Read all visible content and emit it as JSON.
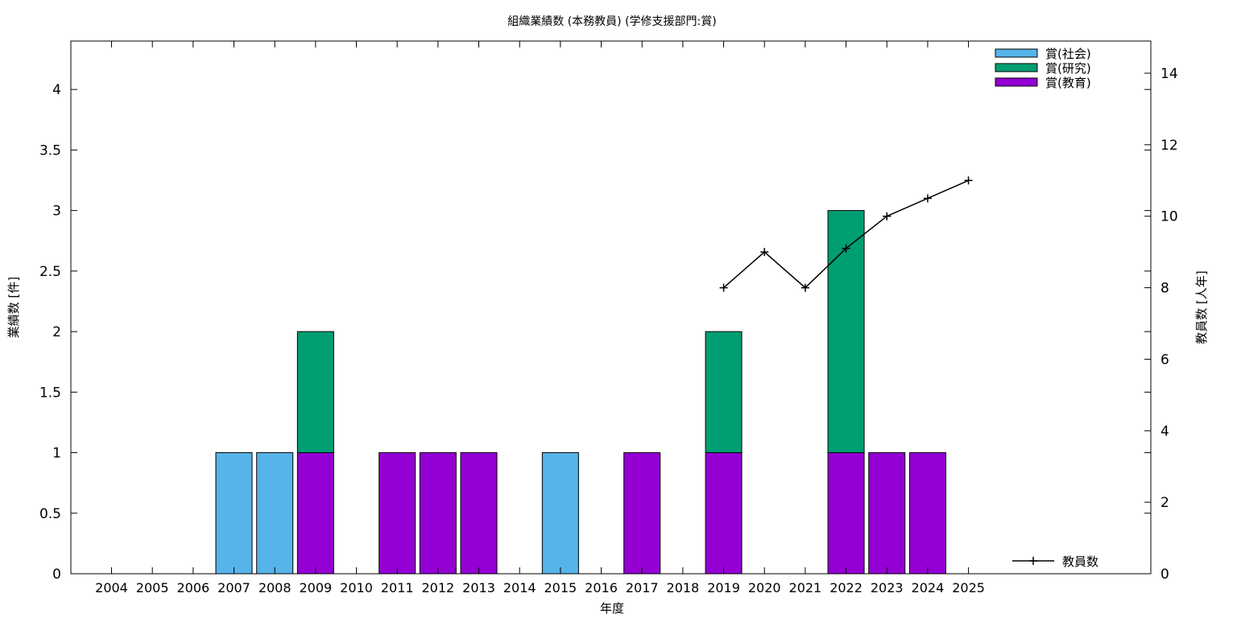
{
  "chart_data": {
    "type": "bar",
    "stacked": true,
    "title": "組織業績数 (本務教員) (学修支援部門:賞)",
    "xlabel": "年度",
    "ylabel": "業績数 [件]",
    "y2label": "教員数 [人年]",
    "categories": [
      "2004",
      "2005",
      "2006",
      "2007",
      "2008",
      "2009",
      "2010",
      "2011",
      "2012",
      "2013",
      "2014",
      "2015",
      "2016",
      "2017",
      "2018",
      "2019",
      "2020",
      "2021",
      "2022",
      "2023",
      "2024",
      "2025"
    ],
    "ylim": [
      0,
      4.4
    ],
    "y_ticks": [
      "0",
      "0.5",
      "1",
      "1.5",
      "2",
      "2.5",
      "3",
      "3.5",
      "4"
    ],
    "y2lim": [
      0,
      14.9
    ],
    "y2_ticks": [
      "0",
      "2",
      "4",
      "6",
      "8",
      "10",
      "12",
      "14"
    ],
    "grid": false,
    "legend_position": "top-right",
    "series": [
      {
        "name": "賞(教育)",
        "color": "#9400d3",
        "values": [
          0,
          0,
          0,
          0,
          0,
          1,
          0,
          1,
          1,
          1,
          0,
          0,
          0,
          1,
          0,
          1,
          0,
          0,
          1,
          1,
          1,
          0
        ]
      },
      {
        "name": "賞(研究)",
        "color": "#009e73",
        "values": [
          0,
          0,
          0,
          0,
          0,
          1,
          0,
          0,
          0,
          0,
          0,
          0,
          0,
          0,
          0,
          1,
          0,
          0,
          2,
          0,
          0,
          0
        ]
      },
      {
        "name": "賞(社会)",
        "color": "#56b4e9",
        "values": [
          0,
          0,
          0,
          1,
          1,
          0,
          0,
          0,
          0,
          0,
          0,
          1,
          0,
          0,
          0,
          0,
          0,
          0,
          0,
          0,
          0,
          0
        ]
      }
    ],
    "legend_order": [
      "賞(社会)",
      "賞(研究)",
      "賞(教育)"
    ],
    "line_series": {
      "name": "教員数",
      "axis": "y2",
      "color": "#000000",
      "legend_position": "bottom-right",
      "x": [
        "2019",
        "2020",
        "2021",
        "2022",
        "2023",
        "2024",
        "2025"
      ],
      "values": [
        8,
        9,
        8,
        9.1,
        10,
        10.5,
        11
      ]
    }
  }
}
